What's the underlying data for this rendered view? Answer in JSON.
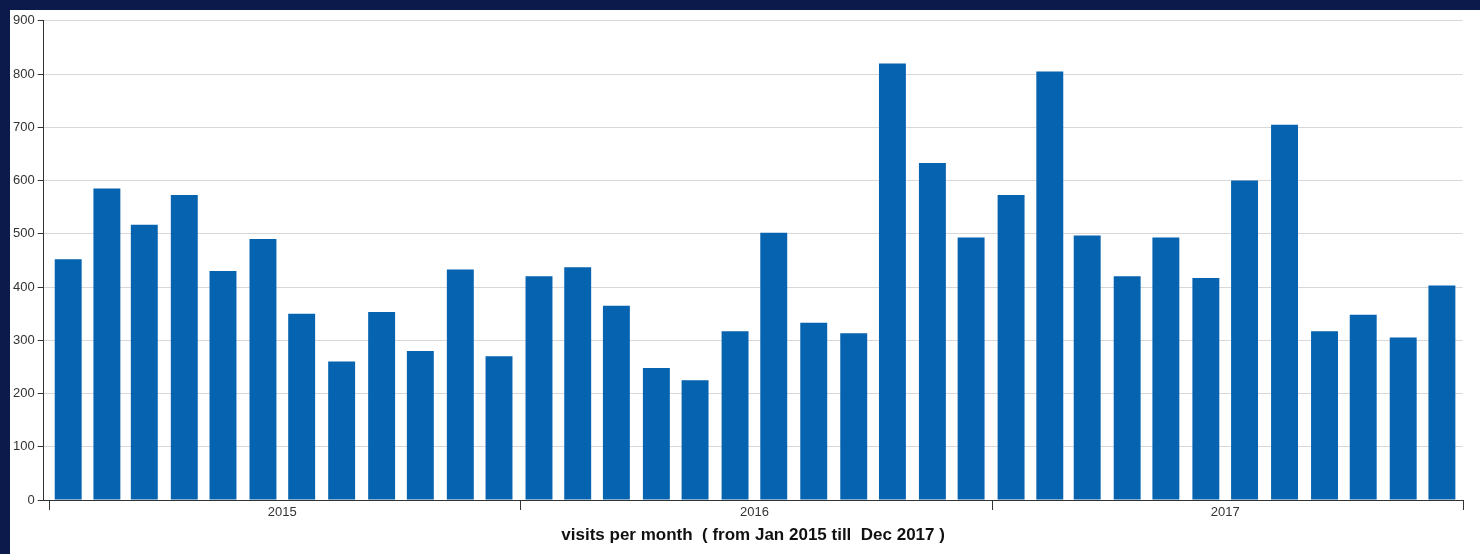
{
  "chart_data": {
    "type": "bar",
    "xlabel": "visits per month  ( from Jan 2015 till  Dec 2017 )",
    "x": [
      "2015-01-16",
      "2015-02-15",
      "2015-03-16",
      "2015-04-16",
      "2015-05-16",
      "2015-06-16",
      "2015-07-16",
      "2015-08-16",
      "2015-09-16",
      "2015-10-16",
      "2015-11-16",
      "2015-12-16",
      "2016-01-16",
      "2016-02-15",
      "2016-03-16",
      "2016-04-16",
      "2016-05-16",
      "2016-06-16",
      "2016-07-16",
      "2016-08-16",
      "2016-09-16",
      "2016-10-16",
      "2016-11-16",
      "2016-12-16",
      "2017-01-16",
      "2017-02-15",
      "2017-03-16",
      "2017-04-16",
      "2017-05-16",
      "2017-06-16",
      "2017-07-16",
      "2017-08-16",
      "2017-09-16",
      "2017-10-16",
      "2017-11-16",
      "2017-12-16"
    ],
    "values": [
      452,
      585,
      517,
      573,
      430,
      490,
      350,
      260,
      353,
      280,
      433,
      270,
      420,
      437,
      365,
      248,
      225,
      317,
      502,
      333,
      313,
      820,
      633,
      493,
      573,
      805,
      497,
      420,
      493,
      417,
      600,
      705,
      317,
      348,
      305,
      403
    ],
    "color": "#0563b0",
    "xlim": [
      "2014-12-28",
      "2018-01-01"
    ],
    "xticks": [
      {
        "value": "2015-01-01",
        "label": null
      },
      {
        "value": "2015-07-01",
        "label": "2015"
      },
      {
        "value": "2016-01-01",
        "label": null
      },
      {
        "value": "2016-07-01",
        "label": "2016"
      },
      {
        "value": "2017-01-01",
        "label": null
      },
      {
        "value": "2017-07-01",
        "label": "2017"
      },
      {
        "value": "2018-01-01",
        "label": null
      }
    ],
    "ylim": [
      0,
      900
    ],
    "yticks": [
      0,
      100,
      200,
      300,
      400,
      500,
      600,
      700,
      800,
      900
    ],
    "grid": "y"
  }
}
